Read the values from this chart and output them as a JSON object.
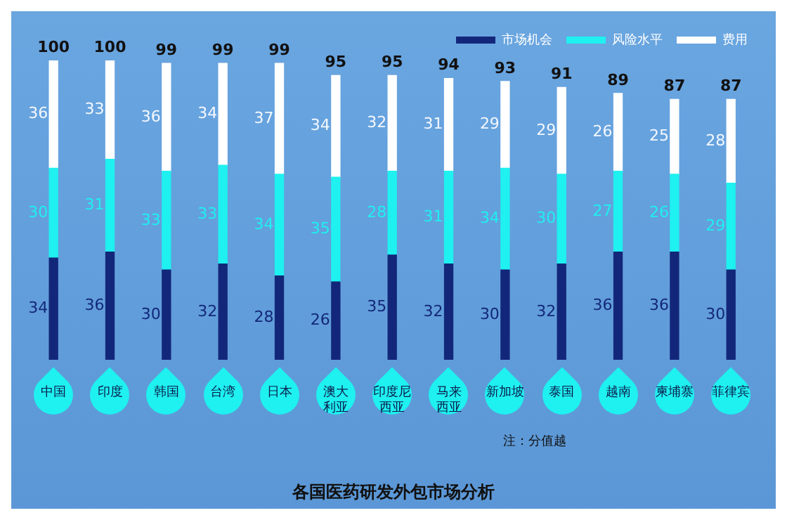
{
  "chart_data": {
    "type": "bar",
    "title": "各国医药研发外包市场分析",
    "stacked": true,
    "data_labels": true,
    "legend": "top right",
    "grid": false,
    "categories": [
      "中国",
      "印度",
      "韩国",
      "台湾",
      "日本",
      "澳大利亚",
      "印度尼西亚",
      "马来西亚",
      "新加坡",
      "泰国",
      "越南",
      "柬埔寨",
      "菲律宾"
    ],
    "series": [
      {
        "name": "市场机会",
        "color": "#13277a",
        "values": [
          34,
          36,
          30,
          32,
          28,
          26,
          35,
          32,
          30,
          32,
          36,
          36,
          30
        ]
      },
      {
        "name": "风险水平",
        "color": "#1ff0f0",
        "values": [
          30,
          31,
          33,
          33,
          34,
          35,
          28,
          31,
          34,
          30,
          27,
          26,
          29
        ]
      },
      {
        "name": "费用",
        "color": "#ffffff",
        "values": [
          36,
          33,
          36,
          34,
          37,
          34,
          32,
          31,
          29,
          29,
          26,
          25,
          28
        ]
      }
    ],
    "totals": [
      "100",
      "100",
      "99",
      "99",
      "99",
      "95",
      "95",
      "94",
      "93",
      "91",
      "89",
      "87",
      "87"
    ],
    "annotations": [
      "注：分值越"
    ]
  }
}
